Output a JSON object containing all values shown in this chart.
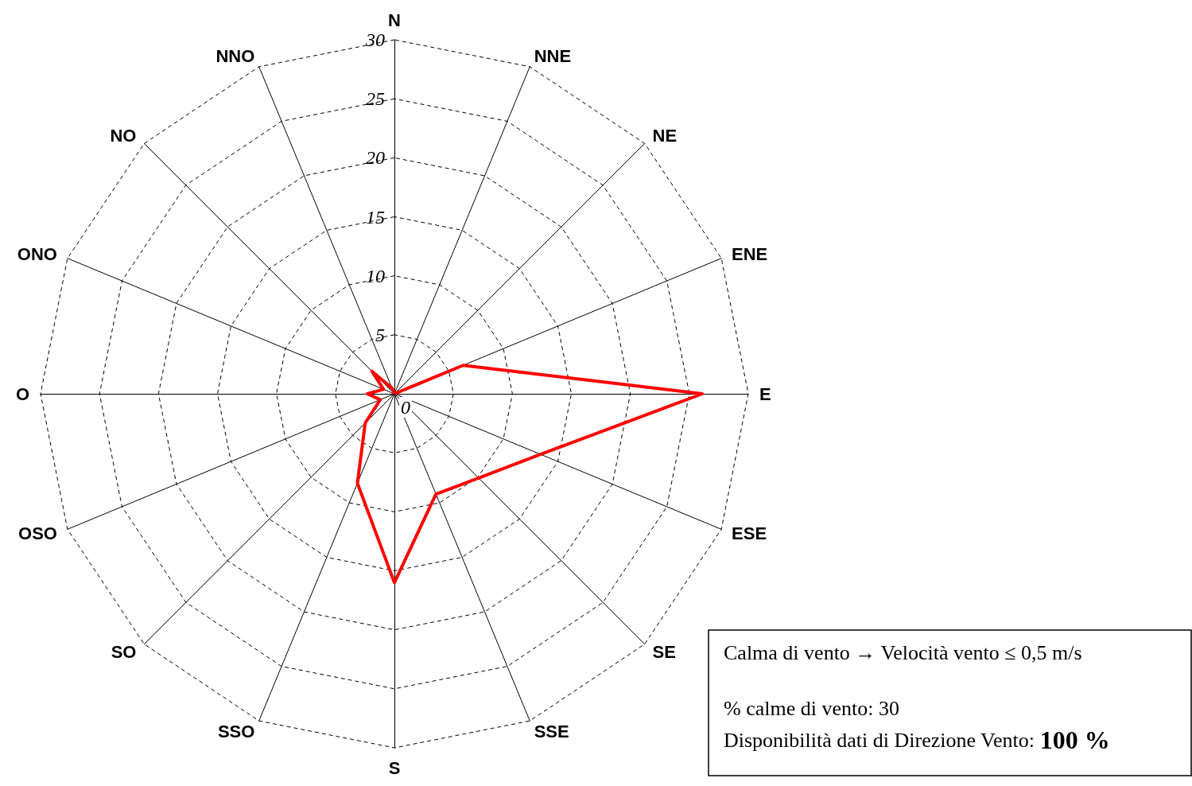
{
  "chart_data": {
    "type": "radar",
    "categories": [
      "N",
      "NNE",
      "NE",
      "ENE",
      "E",
      "ESE",
      "SE",
      "SSE",
      "S",
      "SSO",
      "SO",
      "OSO",
      "O",
      "ONO",
      "NO",
      "NNO"
    ],
    "series": [
      {
        "color": "#ff0000",
        "values": [
          0,
          0,
          0,
          6.3,
          26.1,
          13.4,
          10.1,
          9.2,
          16,
          8.2,
          3.5,
          1.3,
          2.3,
          1,
          2.7,
          0.5
        ]
      }
    ],
    "ylim": [
      0,
      30
    ],
    "yticks": [
      0,
      5,
      10,
      15,
      20,
      25,
      30
    ],
    "marker": "none",
    "annotations": [
      "Calma di vento → Velocità vento ≤ 0,5 m/s",
      "% calme di vento: 30",
      "Disponibilità dati di Direzione Vento: 100 %"
    ]
  }
}
